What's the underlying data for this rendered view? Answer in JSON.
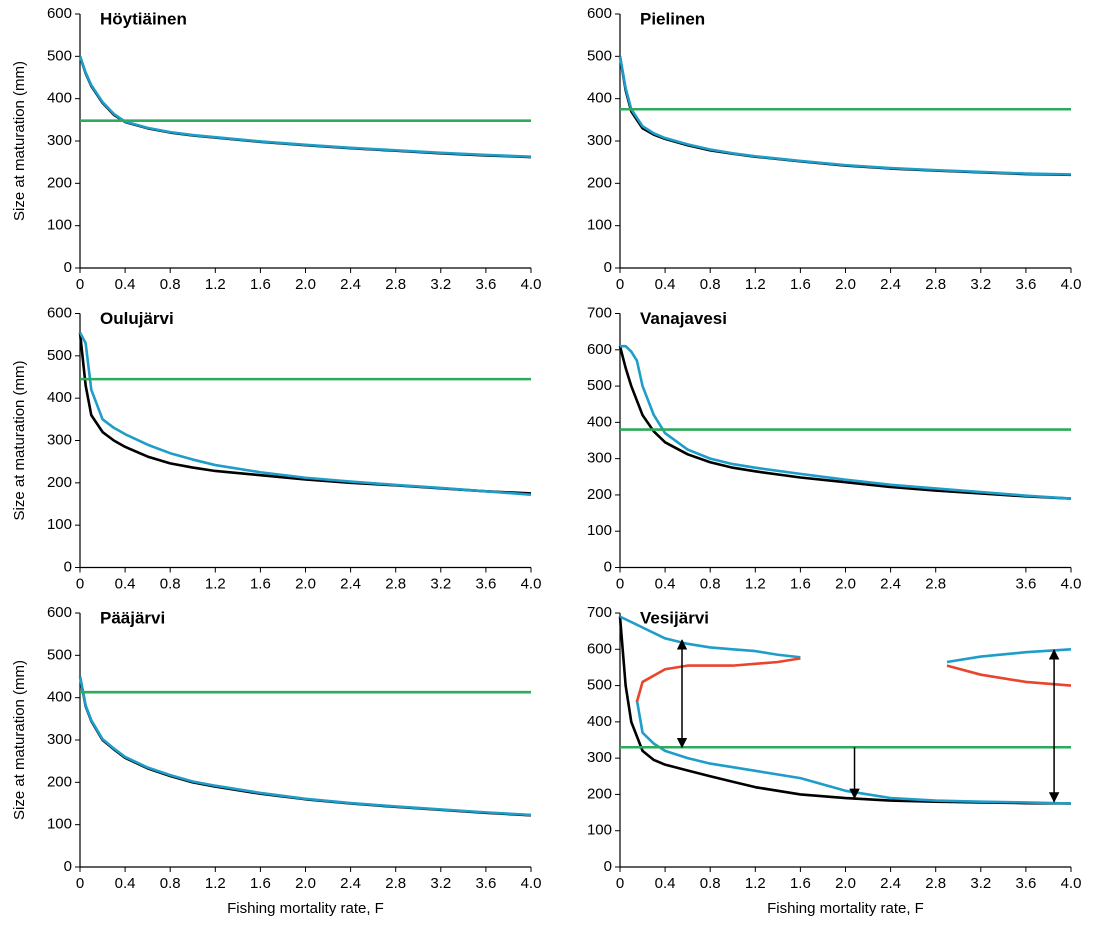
{
  "chart_data": [
    {
      "type": "line",
      "title": "Höytiäinen",
      "y_label": "Size at maturation (mm)",
      "xlim": [
        0,
        4
      ],
      "ylim": [
        0,
        600
      ],
      "xticks": [
        0,
        0.4,
        0.8,
        1.2,
        1.6,
        {
          "value": 2,
          "label": "2.0"
        },
        2.4,
        2.8,
        3.2,
        3.6,
        {
          "value": 4,
          "label": "4.0"
        }
      ],
      "yticks": [
        0,
        100,
        200,
        300,
        400,
        500,
        600
      ],
      "series": [
        {
          "color": "#000000",
          "x": [
            0,
            0.05,
            0.1,
            0.2,
            0.3,
            0.4,
            0.6,
            0.8,
            1.0,
            1.2,
            1.6,
            2.0,
            2.4,
            2.8,
            3.2,
            3.6,
            4.0
          ],
          "values": [
            500,
            460,
            430,
            390,
            362,
            345,
            330,
            320,
            313,
            308,
            298,
            290,
            283,
            277,
            271,
            266,
            262
          ]
        },
        {
          "color": "#1f9dc9",
          "x": [
            0,
            0.05,
            0.1,
            0.2,
            0.3,
            0.4,
            0.6,
            0.8,
            1.0,
            1.2,
            1.6,
            2.0,
            2.4,
            2.8,
            3.2,
            3.6,
            4.0
          ],
          "values": [
            500,
            462,
            432,
            392,
            364,
            346,
            331,
            321,
            314,
            309,
            299,
            291,
            284,
            278,
            272,
            267,
            263
          ]
        },
        {
          "color": "#2eaa5c",
          "x": [
            0,
            4
          ],
          "values": [
            348,
            348
          ]
        }
      ]
    },
    {
      "type": "line",
      "title": "Pielinen",
      "xlim": [
        0,
        4
      ],
      "ylim": [
        0,
        600
      ],
      "xticks": [
        0,
        0.4,
        0.8,
        1.2,
        1.6,
        {
          "value": 2,
          "label": "2.0"
        },
        2.4,
        2.8,
        3.2,
        3.6,
        {
          "value": 4,
          "label": "4.0"
        }
      ],
      "yticks": [
        0,
        100,
        200,
        300,
        400,
        500,
        600
      ],
      "series": [
        {
          "color": "#000000",
          "x": [
            0,
            0.05,
            0.1,
            0.2,
            0.3,
            0.4,
            0.6,
            0.8,
            1.0,
            1.2,
            1.6,
            2.0,
            2.4,
            2.8,
            3.2,
            3.6,
            4.0
          ],
          "values": [
            500,
            420,
            370,
            330,
            315,
            305,
            290,
            278,
            270,
            263,
            252,
            242,
            235,
            230,
            226,
            222,
            220
          ]
        },
        {
          "color": "#1f9dc9",
          "x": [
            0,
            0.05,
            0.1,
            0.2,
            0.3,
            0.4,
            0.6,
            0.8,
            1.0,
            1.2,
            1.6,
            2.0,
            2.4,
            2.8,
            3.2,
            3.6,
            4.0
          ],
          "values": [
            500,
            425,
            375,
            335,
            318,
            307,
            292,
            280,
            271,
            264,
            253,
            243,
            236,
            231,
            227,
            223,
            221
          ]
        },
        {
          "color": "#2eaa5c",
          "x": [
            0,
            4
          ],
          "values": [
            375,
            375
          ]
        }
      ]
    },
    {
      "type": "line",
      "title": "Oulujärvi",
      "y_label": "Size at maturation (mm)",
      "xlim": [
        0,
        4
      ],
      "ylim": [
        0,
        600
      ],
      "xticks": [
        0,
        0.4,
        0.8,
        1.2,
        1.6,
        {
          "value": 2,
          "label": "2.0"
        },
        2.4,
        2.8,
        3.2,
        3.6,
        {
          "value": 4,
          "label": "4.0"
        }
      ],
      "yticks": [
        0,
        100,
        200,
        300,
        400,
        500,
        600
      ],
      "series": [
        {
          "color": "#000000",
          "x": [
            0,
            0.05,
            0.1,
            0.2,
            0.3,
            0.4,
            0.6,
            0.8,
            1.0,
            1.2,
            1.6,
            2.0,
            2.4,
            2.8,
            3.2,
            3.6,
            4.0
          ],
          "values": [
            555,
            430,
            360,
            320,
            300,
            285,
            262,
            246,
            236,
            228,
            218,
            208,
            200,
            194,
            187,
            180,
            175
          ]
        },
        {
          "color": "#1f9dc9",
          "x": [
            0,
            0.05,
            0.1,
            0.2,
            0.3,
            0.4,
            0.6,
            0.8,
            1.0,
            1.2,
            1.6,
            2.0,
            2.4,
            2.8,
            3.2,
            3.6,
            4.0
          ],
          "values": [
            555,
            530,
            420,
            350,
            330,
            315,
            290,
            270,
            255,
            242,
            225,
            212,
            203,
            195,
            188,
            180,
            172
          ]
        },
        {
          "color": "#2eaa5c",
          "x": [
            0,
            4
          ],
          "values": [
            445,
            445
          ]
        }
      ]
    },
    {
      "type": "line",
      "title": "Vanajavesi",
      "xlim": [
        0,
        4
      ],
      "ylim": [
        0,
        700
      ],
      "xticks": [
        0,
        0.4,
        0.8,
        1.2,
        1.6,
        {
          "value": 2,
          "label": "2.0"
        },
        2.4,
        2.8,
        3.6,
        {
          "value": 4,
          "label": "4.0"
        }
      ],
      "yticks": [
        0,
        100,
        200,
        300,
        400,
        500,
        600,
        700
      ],
      "series": [
        {
          "color": "#000000",
          "x": [
            0,
            0.05,
            0.1,
            0.2,
            0.3,
            0.4,
            0.6,
            0.8,
            1.0,
            1.2,
            1.6,
            2.0,
            2.4,
            2.8,
            3.2,
            3.6,
            4.0
          ],
          "values": [
            610,
            550,
            500,
            420,
            375,
            345,
            312,
            290,
            275,
            265,
            248,
            235,
            222,
            212,
            204,
            196,
            190
          ]
        },
        {
          "color": "#1f9dc9",
          "x": [
            0,
            0.05,
            0.1,
            0.15,
            0.2,
            0.3,
            0.4,
            0.6,
            0.8,
            1.0,
            1.2,
            1.6,
            2.0,
            2.4,
            2.8,
            3.2,
            3.6,
            4.0
          ],
          "values": [
            610,
            610,
            595,
            570,
            500,
            420,
            370,
            325,
            300,
            285,
            275,
            258,
            242,
            228,
            218,
            208,
            198,
            190
          ]
        },
        {
          "color": "#2eaa5c",
          "x": [
            0,
            4
          ],
          "values": [
            380,
            380
          ]
        }
      ]
    },
    {
      "type": "line",
      "title": "Pääjärvi",
      "y_label": "Size at maturation (mm)",
      "x_label": "Fishing mortality rate, F",
      "xlim": [
        0,
        4
      ],
      "ylim": [
        0,
        600
      ],
      "xticks": [
        0,
        0.4,
        0.8,
        1.2,
        1.6,
        {
          "value": 2,
          "label": "2.0"
        },
        2.4,
        2.8,
        3.2,
        3.6,
        {
          "value": 4,
          "label": "4.0"
        }
      ],
      "yticks": [
        0,
        100,
        200,
        300,
        400,
        500,
        600
      ],
      "series": [
        {
          "color": "#000000",
          "x": [
            0,
            0.05,
            0.1,
            0.2,
            0.3,
            0.4,
            0.6,
            0.8,
            1.0,
            1.2,
            1.6,
            2.0,
            2.4,
            2.8,
            3.2,
            3.6,
            4.0
          ],
          "values": [
            450,
            380,
            345,
            300,
            278,
            258,
            233,
            215,
            200,
            190,
            173,
            160,
            150,
            142,
            135,
            128,
            122
          ]
        },
        {
          "color": "#1f9dc9",
          "x": [
            0,
            0.05,
            0.1,
            0.2,
            0.3,
            0.4,
            0.6,
            0.8,
            1.0,
            1.2,
            1.6,
            2.0,
            2.4,
            2.8,
            3.2,
            3.6,
            4.0
          ],
          "values": [
            450,
            382,
            347,
            302,
            280,
            260,
            235,
            217,
            202,
            192,
            175,
            161,
            151,
            143,
            136,
            129,
            123
          ]
        },
        {
          "color": "#2eaa5c",
          "x": [
            0,
            4
          ],
          "values": [
            413,
            413
          ]
        }
      ]
    },
    {
      "type": "line",
      "title": "Vesijärvi",
      "x_label": "Fishing mortality rate, F",
      "xlim": [
        0,
        4
      ],
      "ylim": [
        0,
        700
      ],
      "xticks": [
        0,
        0.4,
        0.8,
        1.2,
        1.6,
        {
          "value": 2,
          "label": "2.0"
        },
        2.4,
        2.8,
        3.2,
        3.6,
        {
          "value": 4,
          "label": "4.0"
        }
      ],
      "yticks": [
        0,
        100,
        200,
        300,
        400,
        500,
        600,
        700
      ],
      "series": [
        {
          "color": "#000000",
          "x": [
            0,
            0.05,
            0.1,
            0.2,
            0.3,
            0.4,
            0.6,
            0.8,
            1.0,
            1.2,
            1.6,
            2.0,
            2.4,
            2.8,
            3.2,
            3.6,
            4.0
          ],
          "values": [
            690,
            500,
            400,
            320,
            295,
            282,
            266,
            250,
            235,
            220,
            200,
            190,
            183,
            180,
            178,
            176,
            175
          ]
        },
        {
          "color": "#1f9dc9",
          "x": [
            0.15,
            0.2,
            0.3,
            0.4,
            0.6,
            0.8,
            1.0,
            1.2,
            1.6,
            2.0,
            2.4,
            2.8,
            3.2,
            3.6,
            4.0
          ],
          "values": [
            460,
            370,
            340,
            320,
            300,
            285,
            275,
            265,
            245,
            210,
            190,
            183,
            180,
            178,
            175
          ]
        },
        {
          "color": "#1f9dc9",
          "x": [
            0,
            0.2,
            0.4,
            0.6,
            0.8,
            1.0,
            1.2,
            1.4,
            1.6
          ],
          "values": [
            690,
            660,
            630,
            615,
            605,
            600,
            595,
            585,
            578
          ]
        },
        {
          "color": "#e8452c",
          "x": [
            0.15,
            0.2,
            0.4,
            0.6,
            0.8,
            1.0,
            1.2,
            1.4,
            1.6
          ],
          "values": [
            455,
            510,
            545,
            555,
            555,
            555,
            560,
            565,
            575
          ]
        },
        {
          "color": "#1f9dc9",
          "x": [
            2.9,
            3.2,
            3.6,
            4.0
          ],
          "values": [
            565,
            580,
            592,
            600
          ]
        },
        {
          "color": "#e8452c",
          "x": [
            2.9,
            3.2,
            3.6,
            4.0
          ],
          "values": [
            555,
            530,
            510,
            500
          ]
        },
        {
          "color": "#2eaa5c",
          "x": [
            0,
            4
          ],
          "values": [
            330,
            330
          ]
        }
      ],
      "arrows": [
        {
          "x": 0.55,
          "y": [
            330,
            625
          ],
          "heads": "both"
        },
        {
          "x": 2.08,
          "y": [
            330,
            190
          ],
          "heads": "end"
        },
        {
          "x": 3.85,
          "y": [
            180,
            598
          ],
          "heads": "both"
        }
      ]
    }
  ]
}
